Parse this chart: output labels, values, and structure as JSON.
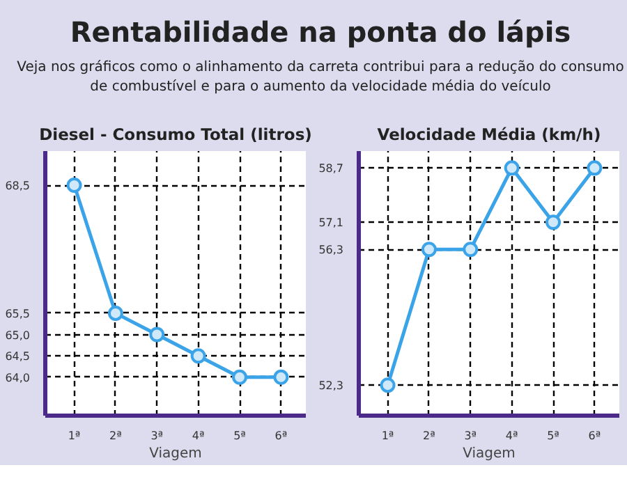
{
  "chart_data": [
    {
      "type": "line",
      "title": "Diesel - Consumo Total (litros)",
      "annotations": [
        "Rentabilidade na ponta do lápis",
        "Veja nos gráficos como o alinhamento da carreta contribui para a redução do consumo de combustível e para o aumento da velocidade média do veículo"
      ],
      "xlabel": "Viagem",
      "categories": [
        "1ª",
        "2ª",
        "3ª",
        "4ª",
        "5ª",
        "6ª"
      ],
      "series": [
        {
          "color": "#3ba3e8",
          "values": [
            68.5,
            65.5,
            65.0,
            64.5,
            64.0,
            64.0
          ]
        }
      ],
      "ylim": [
        63.1,
        69.3
      ],
      "yticks": [
        {
          "value": 64.0,
          "label": "64,0"
        },
        {
          "value": 64.5,
          "label": "64,5"
        },
        {
          "value": 65.0,
          "label": "65,0"
        },
        {
          "value": 65.5,
          "label": "65,5"
        },
        {
          "value": 68.5,
          "label": "68,5"
        }
      ],
      "grid": true,
      "marker": "circle"
    },
    {
      "type": "line",
      "title": "Velocidade Média (km/h)",
      "xlabel": "Viagem",
      "categories": [
        "1ª",
        "2ª",
        "3ª",
        "4ª",
        "5ª",
        "6ª"
      ],
      "series": [
        {
          "color": "#3ba3e8",
          "values": [
            52.3,
            56.3,
            56.3,
            58.7,
            57.1,
            58.7
          ]
        }
      ],
      "ylim": [
        51.4,
        59.2
      ],
      "yticks": [
        {
          "value": 52.3,
          "label": "52,3"
        },
        {
          "value": 56.3,
          "label": "56,3"
        },
        {
          "value": 57.1,
          "label": "57,1"
        },
        {
          "value": 58.7,
          "label": "58,7"
        }
      ],
      "grid": true,
      "marker": "circle"
    }
  ]
}
